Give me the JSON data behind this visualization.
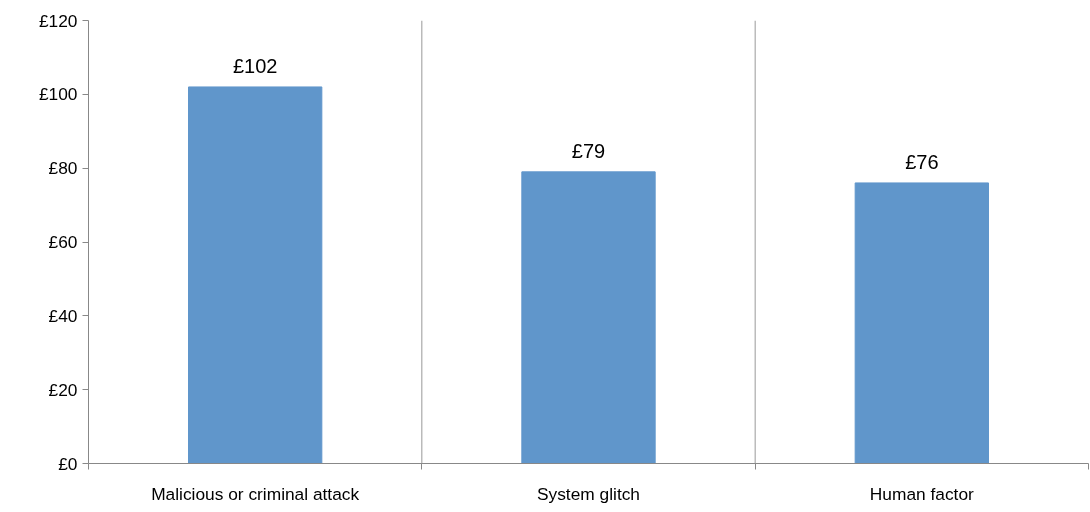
{
  "chart_data": {
    "type": "bar",
    "categories": [
      "Malicious or criminal attack",
      "System glitch",
      "Human factor"
    ],
    "values": [
      102,
      79,
      76
    ],
    "color": "#6096cb",
    "value_labels": [
      "£102",
      "£79",
      "£76"
    ],
    "ylim": [
      0,
      120
    ],
    "yticks": [
      {
        "value": 0,
        "label": "£0"
      },
      {
        "value": 20,
        "label": "£20"
      },
      {
        "value": 40,
        "label": "£40"
      },
      {
        "value": 60,
        "label": "£60"
      },
      {
        "value": 80,
        "label": "£80"
      },
      {
        "value": 100,
        "label": "£100"
      },
      {
        "value": 120,
        "label": "£120"
      }
    ],
    "grid": "x"
  }
}
